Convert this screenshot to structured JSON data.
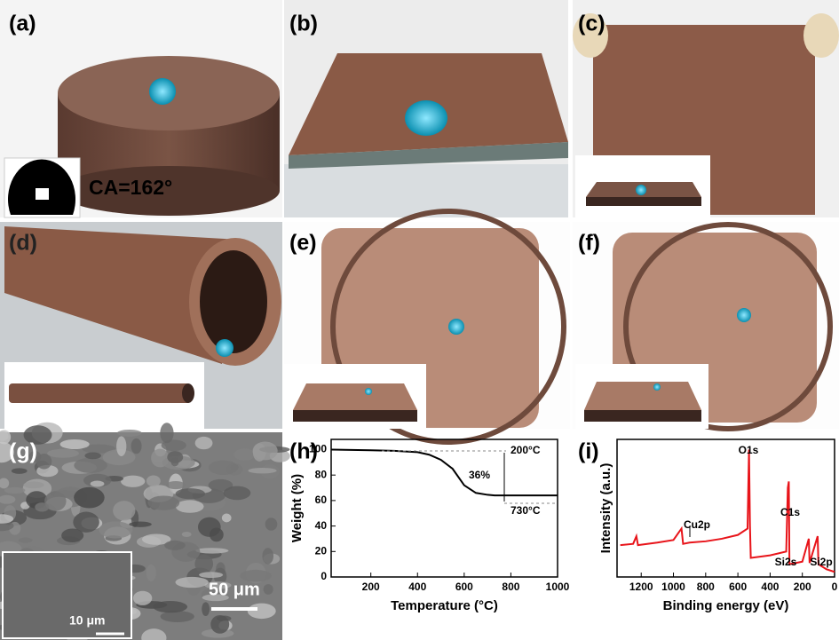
{
  "panels": {
    "labels": [
      "(a)",
      "(b)",
      "(c)",
      "(d)",
      "(e)",
      "(f)",
      "(g)",
      "(h)",
      "(i)"
    ],
    "contact_angle": "CA=162°",
    "inset_scale": "10 μm",
    "scale": "50 μm"
  },
  "chart_data": [
    {
      "type": "line",
      "xlabel": "Temperature (°C)",
      "ylabel": "Weight (%)",
      "series": [
        {
          "color": "#000000",
          "x": [
            30,
            200,
            300,
            400,
            450,
            500,
            550,
            600,
            650,
            700,
            730,
            800,
            900,
            1000
          ],
          "values": [
            100,
            99.5,
            99,
            98,
            96,
            92,
            85,
            72,
            66,
            64.5,
            64,
            64,
            64,
            64
          ]
        }
      ],
      "xlim": [
        30,
        1000
      ],
      "ylim": [
        0,
        108
      ],
      "xticks": [
        200,
        400,
        600,
        800,
        1000
      ],
      "yticks": [
        0,
        20,
        40,
        60,
        80,
        100
      ],
      "annotations": [
        "200°C",
        "36%",
        "730°C"
      ]
    },
    {
      "type": "line",
      "xlabel": "Binding energy (eV)",
      "ylabel": "Intensity (a.u.)",
      "series": [
        {
          "color": "#e8141a",
          "x": [
            1330,
            1250,
            1230,
            1220,
            1100,
            1000,
            950,
            940,
            900,
            800,
            700,
            600,
            540,
            531,
            525,
            520,
            400,
            300,
            290,
            284,
            280,
            200,
            160,
            155,
            105,
            100,
            50,
            0
          ],
          "values": [
            25,
            26,
            32,
            25,
            27,
            29,
            38,
            26,
            27,
            28,
            30,
            33,
            38,
            100,
            40,
            15,
            17,
            20,
            70,
            75,
            10,
            12,
            30,
            11,
            32,
            10,
            6,
            4
          ]
        }
      ],
      "xlim": [
        1350,
        0
      ],
      "ylim": [
        0,
        108
      ],
      "xticks": [
        1200,
        1000,
        800,
        600,
        400,
        200,
        0
      ],
      "annotations": [
        "O1s",
        "C1s",
        "Cu2p",
        "Si2s",
        "Si2p"
      ]
    }
  ]
}
